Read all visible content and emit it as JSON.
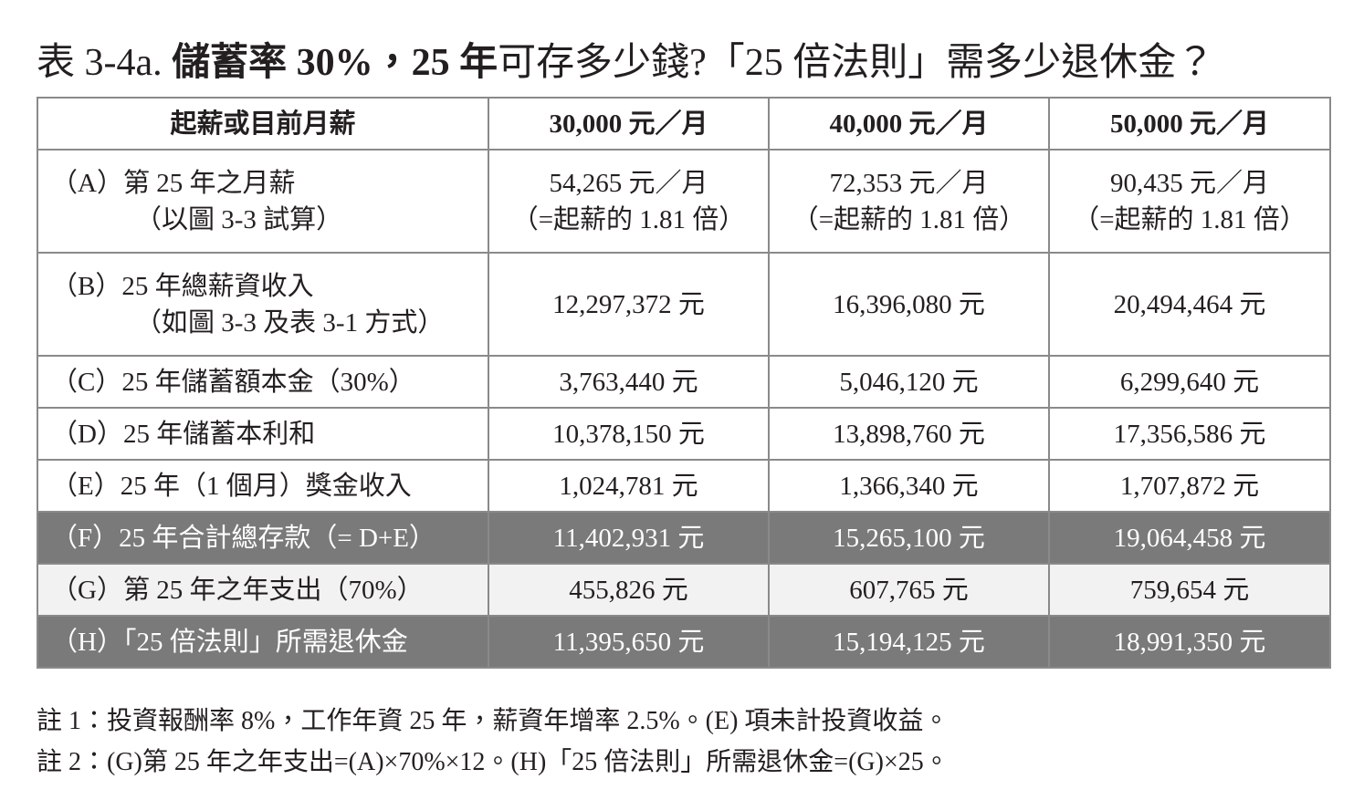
{
  "header": {
    "title": [
      "表 3-4a. ",
      "儲蓄率 30%，25 年",
      "可存多少錢?「25 倍法則」需多少退休金？"
    ]
  },
  "table": {
    "columns": [
      "起薪或目前月薪",
      "30,000 元／月",
      "40,000 元／月",
      "50,000 元／月"
    ],
    "rows": [
      [
        [
          "（A）第 25 年之月薪",
          "（以圖 3-3 試算）"
        ],
        [
          "54,265 元／月",
          "（=起薪的 1.81 倍）"
        ],
        [
          "72,353 元／月",
          "（=起薪的 1.81 倍）"
        ],
        [
          "90,435 元／月",
          "（=起薪的 1.81 倍）"
        ]
      ],
      [
        [
          "（B）25 年總薪資收入",
          "（如圖 3-3 及表 3-1 方式）"
        ],
        [
          "12,297,372 元"
        ],
        [
          "16,396,080 元"
        ],
        [
          "20,494,464 元"
        ]
      ],
      [
        [
          "（C）25 年儲蓄額本金（30%）"
        ],
        [
          "3,763,440 元"
        ],
        [
          "5,046,120 元"
        ],
        [
          "6,299,640 元"
        ]
      ],
      [
        [
          "（D）25 年儲蓄本利和"
        ],
        [
          "10,378,150 元"
        ],
        [
          "13,898,760 元"
        ],
        [
          "17,356,586 元"
        ]
      ],
      [
        [
          "（E）25 年（1 個月）獎金收入"
        ],
        [
          "1,024,781 元"
        ],
        [
          "1,366,340 元"
        ],
        [
          "1,707,872 元"
        ]
      ],
      [
        [
          "（F）25 年合計總存款（= D+E）"
        ],
        [
          "11,402,931 元"
        ],
        [
          "15,265,100 元"
        ],
        [
          "19,064,458 元"
        ]
      ],
      [
        [
          "（G）第 25 年之年支出（70%）"
        ],
        [
          "455,826 元"
        ],
        [
          "607,765 元"
        ],
        [
          "759,654 元"
        ]
      ],
      [
        [
          "（H）「25 倍法則」所需退休金"
        ],
        [
          "11,395,650 元"
        ],
        [
          "15,194,125 元"
        ],
        [
          "18,991,350 元"
        ]
      ]
    ]
  },
  "notes": [
    "註 1：投資報酬率 8%，工作年資 25 年，薪資年增率 2.5%。(E) 項未計投資收益。",
    "註 2：(G)第 25 年之年支出=(A)×70%×12。(H)「25 倍法則」所需退休金=(G)×25。"
  ]
}
